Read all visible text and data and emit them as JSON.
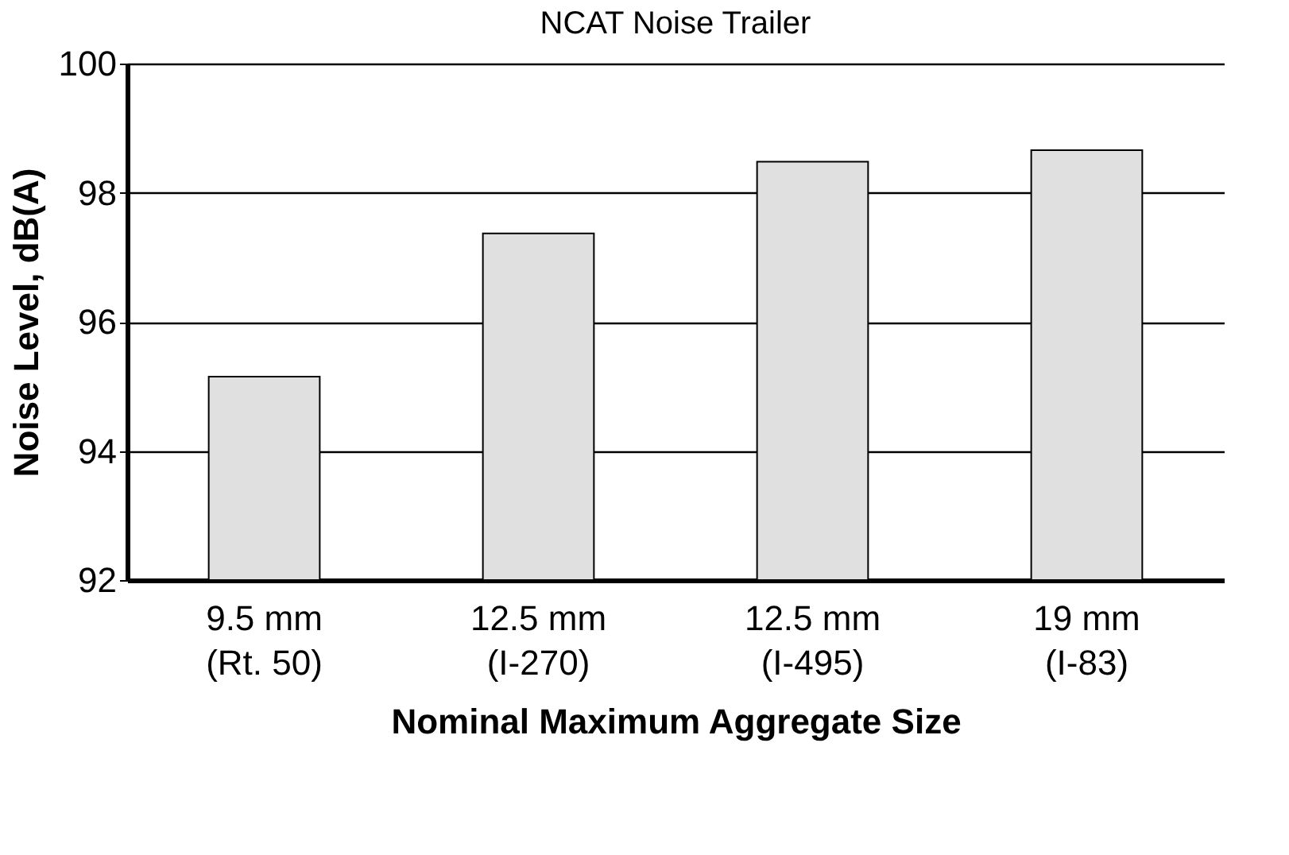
{
  "chart_data": {
    "type": "bar",
    "title": "NCAT Noise Trailer",
    "xlabel": "Nominal Maximum Aggregate Size",
    "ylabel": "Noise Level, dB(A)",
    "categories": [
      "9.5 mm\n(Rt. 50)",
      "12.5 mm\n(I-270)",
      "12.5 mm\n(I-495)",
      "19 mm\n(I-83)"
    ],
    "values": [
      95.15,
      97.37,
      98.48,
      98.66
    ],
    "color": "#e0e0e0",
    "ylim": [
      92,
      100
    ],
    "yticks": [
      92,
      94,
      96,
      98,
      100
    ],
    "grid": "y"
  }
}
